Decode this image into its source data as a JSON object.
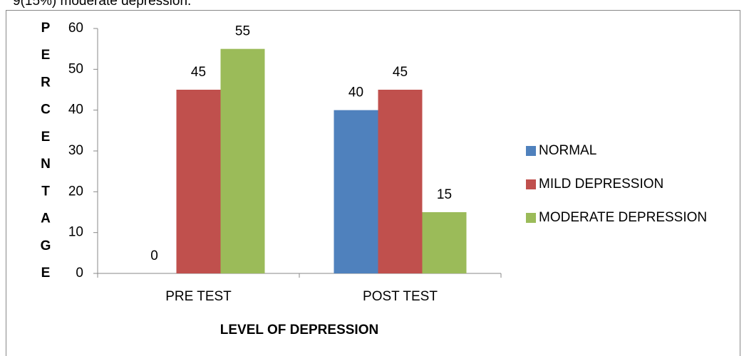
{
  "text_above": "9(15%) moderate depression.",
  "chart_data": {
    "type": "bar",
    "categories": [
      "PRE TEST",
      "POST TEST"
    ],
    "series": [
      {
        "name": "NORMAL",
        "color": "#4f81bd",
        "values": [
          0,
          40
        ]
      },
      {
        "name": "MILD DEPRESSION",
        "color": "#c0504d",
        "values": [
          45,
          45
        ]
      },
      {
        "name": "MODERATE DEPRESSION",
        "color": "#9bbb59",
        "values": [
          55,
          15
        ]
      }
    ],
    "ylim": [
      0,
      60
    ],
    "yticks": [
      0,
      10,
      20,
      30,
      40,
      50,
      60
    ],
    "x_label": "LEVEL OF DEPRESSION",
    "y_label": "PERCENTAGE",
    "legend": "right",
    "data_labels": true
  }
}
